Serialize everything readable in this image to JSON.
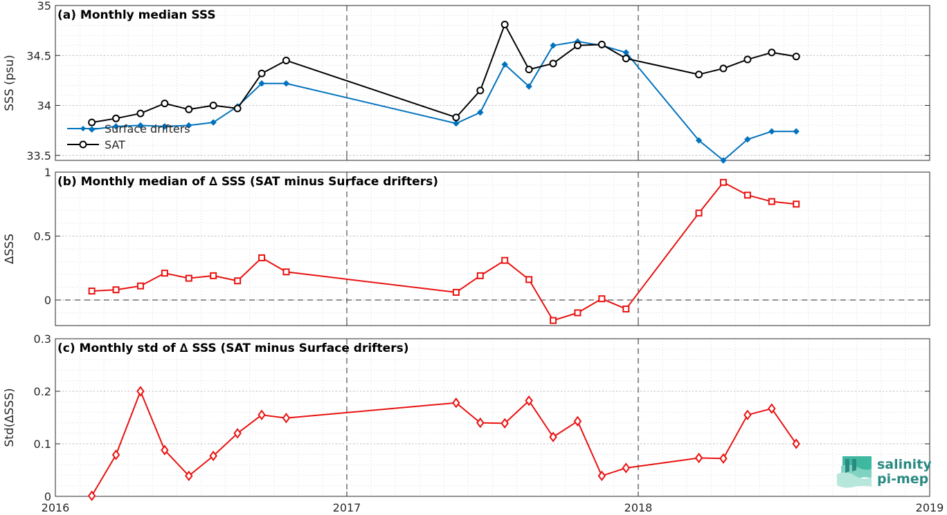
{
  "chart_data": [
    {
      "type": "line",
      "title": "(a) Monthly median SSS",
      "ylabel": "SSS (psu)",
      "ylim": [
        33.45,
        35
      ],
      "yticks": [
        "33.5",
        "34",
        "34.5",
        "35"
      ],
      "grid": true,
      "legend_placement": "bottom-left",
      "series": [
        {
          "name": "Surface drifters",
          "color": "#0072bd",
          "marker": "diamond",
          "x": [
            2016.125,
            2016.208,
            2016.292,
            2016.375,
            2016.458,
            2016.542,
            2016.625,
            2016.708,
            2016.792,
            2017.375,
            2017.458,
            2017.542,
            2017.625,
            2017.708,
            2017.792,
            2017.875,
            2017.958,
            2018.208,
            2018.292,
            2018.375,
            2018.458,
            2018.542
          ],
          "values": [
            33.76,
            33.79,
            33.8,
            33.79,
            33.8,
            33.83,
            33.99,
            34.22,
            34.22,
            33.82,
            33.93,
            34.41,
            34.19,
            34.6,
            34.64,
            34.6,
            34.53,
            33.65,
            33.45,
            33.66,
            33.74,
            33.74
          ]
        },
        {
          "name": "SAT",
          "color": "#000000",
          "marker": "circle",
          "x": [
            2016.125,
            2016.208,
            2016.292,
            2016.375,
            2016.458,
            2016.542,
            2016.625,
            2016.708,
            2016.792,
            2017.375,
            2017.458,
            2017.542,
            2017.625,
            2017.708,
            2017.792,
            2017.875,
            2017.958,
            2018.208,
            2018.292,
            2018.375,
            2018.458,
            2018.542
          ],
          "values": [
            33.83,
            33.87,
            33.92,
            34.02,
            33.96,
            34.0,
            33.97,
            34.32,
            34.45,
            33.88,
            34.15,
            34.81,
            34.36,
            34.42,
            34.6,
            34.61,
            34.47,
            34.31,
            34.37,
            34.46,
            34.53,
            34.49
          ]
        }
      ]
    },
    {
      "type": "line",
      "title": "(b) Monthly median of ∆ SSS (SAT minus Surface drifters)",
      "ylabel": "∆SSS",
      "ylim": [
        -0.2,
        1
      ],
      "yticks": [
        "0",
        "0.5",
        "1"
      ],
      "zero_line": "dashed",
      "grid": true,
      "series": [
        {
          "color": "#e8110f",
          "marker": "square",
          "x": [
            2016.125,
            2016.208,
            2016.292,
            2016.375,
            2016.458,
            2016.542,
            2016.625,
            2016.708,
            2016.792,
            2017.375,
            2017.458,
            2017.542,
            2017.625,
            2017.708,
            2017.792,
            2017.875,
            2017.958,
            2018.208,
            2018.292,
            2018.375,
            2018.458,
            2018.542
          ],
          "values": [
            0.07,
            0.08,
            0.11,
            0.21,
            0.17,
            0.19,
            0.15,
            0.33,
            0.22,
            0.06,
            0.19,
            0.31,
            0.16,
            -0.16,
            -0.1,
            0.01,
            -0.07,
            0.68,
            0.92,
            0.82,
            0.77,
            0.75
          ]
        }
      ]
    },
    {
      "type": "line",
      "title": "(c) Monthly std of ∆ SSS (SAT minus Surface drifters)",
      "ylabel": "Std(∆SSS)",
      "ylim": [
        0,
        0.3
      ],
      "yticks": [
        "0",
        "0.1",
        "0.2",
        "0.3"
      ],
      "grid": true,
      "series": [
        {
          "color": "#e8110f",
          "marker": "diamond-open",
          "x": [
            2016.125,
            2016.208,
            2016.292,
            2016.375,
            2016.458,
            2016.542,
            2016.625,
            2016.708,
            2016.792,
            2017.375,
            2017.458,
            2017.542,
            2017.625,
            2017.708,
            2017.792,
            2017.875,
            2017.958,
            2018.208,
            2018.292,
            2018.375,
            2018.458,
            2018.542
          ],
          "values": [
            0.001,
            0.079,
            0.2,
            0.088,
            0.039,
            0.077,
            0.12,
            0.155,
            0.149,
            0.178,
            0.14,
            0.139,
            0.182,
            0.113,
            0.143,
            0.039,
            0.054,
            0.073,
            0.072,
            0.155,
            0.167,
            0.1
          ]
        }
      ]
    }
  ],
  "xaxis": {
    "xlim": [
      2016,
      2019
    ],
    "ticks": [
      2016,
      2017,
      2018,
      2019
    ],
    "tick_labels": [
      "2016",
      "2017",
      "2018",
      "2019"
    ],
    "year_boundaries_dashed": [
      2017,
      2018
    ]
  },
  "logo": {
    "line1": "salinity",
    "line2": "pi-mep",
    "color": "#2a8a82"
  }
}
